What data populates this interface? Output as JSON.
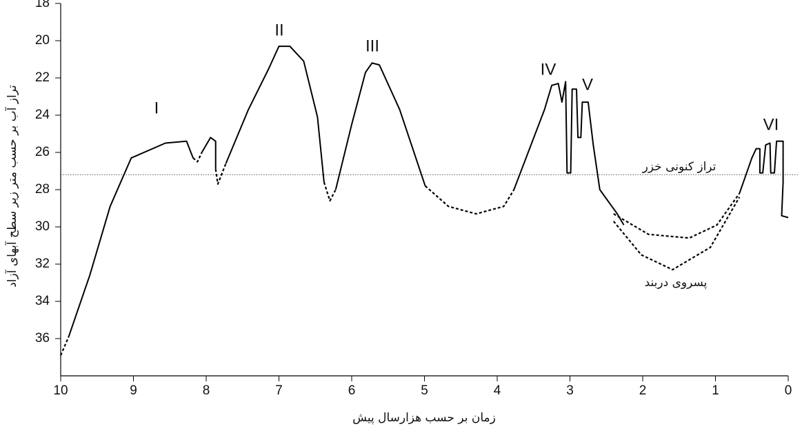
{
  "chart_data": {
    "type": "line",
    "x_label": "زمان بر حسب هزارسال پیش",
    "y_label": "تراز آب بر حسب متر زیر سطح آبهای آزاد",
    "xlim": [
      10,
      0
    ],
    "ylim": [
      18,
      38
    ],
    "xticks": [
      10,
      9,
      8,
      7,
      6,
      5,
      4,
      3,
      2,
      1,
      0
    ],
    "yticks": [
      18,
      20,
      22,
      24,
      26,
      28,
      30,
      32,
      34,
      36
    ],
    "color": "#000000",
    "reference_line": 27.2,
    "annotations": [
      "I",
      "II",
      "III",
      "IV",
      "V",
      "VI",
      "تراز کنونی خزر",
      "پسروی دربند"
    ],
    "segments": [
      {
        "dashed": true,
        "x": [
          10,
          9.89
        ],
        "values": [
          36.9,
          35.9
        ]
      },
      {
        "dashed": false,
        "x": [
          9.89,
          9.6,
          9.32,
          9.03,
          8.56,
          8.27,
          8.18
        ],
        "values": [
          35.9,
          32.6,
          28.9,
          26.3,
          25.5,
          25.4,
          26.3
        ]
      },
      {
        "dashed": true,
        "x": [
          8.18,
          8.12,
          8.06
        ],
        "values": [
          26.3,
          26.5,
          26.0
        ]
      },
      {
        "dashed": false,
        "x": [
          8.06,
          7.94,
          7.87,
          7.87
        ],
        "values": [
          26.0,
          25.2,
          25.4,
          26.9
        ]
      },
      {
        "dashed": true,
        "x": [
          7.87,
          7.84,
          7.73
        ],
        "values": [
          26.9,
          27.7,
          26.6
        ]
      },
      {
        "dashed": false,
        "x": [
          7.73,
          7.42,
          7.14,
          7.0,
          6.85,
          6.66,
          6.47,
          6.38
        ],
        "values": [
          26.6,
          23.7,
          21.5,
          20.3,
          20.3,
          21.1,
          24.1,
          27.6
        ]
      },
      {
        "dashed": true,
        "x": [
          6.38,
          6.3,
          6.22
        ],
        "values": [
          27.6,
          28.6,
          28.0
        ]
      },
      {
        "dashed": false,
        "x": [
          6.22,
          6.0,
          5.81,
          5.72,
          5.62,
          5.34,
          4.99
        ],
        "values": [
          28.0,
          24.5,
          21.7,
          21.2,
          21.3,
          23.7,
          27.8
        ]
      },
      {
        "dashed": true,
        "x": [
          4.99,
          4.67,
          4.29,
          3.91,
          3.77
        ],
        "values": [
          27.8,
          28.9,
          29.3,
          28.9,
          28.0
        ]
      },
      {
        "dashed": false,
        "x": [
          3.77,
          3.35,
          3.25,
          3.16,
          3.11,
          3.06,
          3.04,
          2.99,
          2.97,
          2.91,
          2.89,
          2.85,
          2.83,
          2.75,
          2.68,
          2.59,
          2.35,
          2.26
        ],
        "values": [
          28.0,
          23.7,
          22.4,
          22.3,
          23.3,
          22.2,
          27.1,
          27.1,
          22.6,
          22.6,
          25.2,
          25.2,
          23.3,
          23.3,
          25.6,
          28.0,
          29.3,
          29.9
        ]
      },
      {
        "dashed": true,
        "x": [
          2.4,
          1.92,
          1.36,
          0.98,
          0.67
        ],
        "values": [
          29.3,
          30.4,
          30.6,
          29.9,
          28.2
        ]
      },
      {
        "dashed": true,
        "x": [
          2.4,
          2.02,
          1.59,
          1.07,
          0.67
        ],
        "values": [
          29.7,
          31.5,
          32.3,
          31.1,
          28.4
        ]
      },
      {
        "dashed": false,
        "x": [
          0.67,
          0.5,
          0.44,
          0.39,
          0.39,
          0.35,
          0.31,
          0.25,
          0.24,
          0.19,
          0.16,
          0.07,
          0.07,
          0.09,
          0
        ],
        "values": [
          28.2,
          26.3,
          25.8,
          25.8,
          27.1,
          27.1,
          25.6,
          25.5,
          27.1,
          27.1,
          25.4,
          25.4,
          27.6,
          29.4,
          29.5
        ]
      }
    ]
  }
}
